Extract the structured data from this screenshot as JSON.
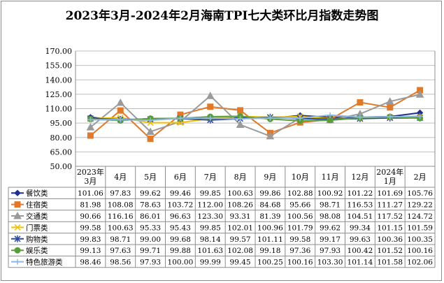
{
  "chart_data": {
    "type": "line",
    "title": "2023年3月-2024年2月海南TPI七大类环比月指数走势图",
    "categories": [
      "2023年3月",
      "4月",
      "5月",
      "6月",
      "7月",
      "8月",
      "9月",
      "10月",
      "11月",
      "12月",
      "2024年1月",
      "2月"
    ],
    "category_lines": [
      [
        "2023年",
        "3月"
      ],
      [
        "4月"
      ],
      [
        "5月"
      ],
      [
        "6月"
      ],
      [
        "7月"
      ],
      [
        "8月"
      ],
      [
        "9月"
      ],
      [
        "10月"
      ],
      [
        "11月"
      ],
      [
        "12月"
      ],
      [
        "2024年",
        "1月"
      ],
      [
        "2月"
      ]
    ],
    "ylim": [
      50,
      170
    ],
    "yticks": [
      "50.00",
      "65.00",
      "80.00",
      "95.00",
      "110.00",
      "125.00",
      "140.00",
      "155.00",
      "170.00"
    ],
    "grid": true,
    "legend": "table-bottom",
    "series": [
      {
        "name": "餐饮类",
        "color": "#1f2f8f",
        "marker": "diamond",
        "values": [
          101.06,
          97.83,
          99.62,
          99.46,
          99.85,
          100.63,
          99.86,
          102.88,
          100.92,
          101.22,
          101.69,
          105.76
        ],
        "labels": [
          "101.06",
          "97.83",
          "99.62",
          "99.46",
          "99.85",
          "100.63",
          "99.86",
          "102.88",
          "100.92",
          "101.22",
          "101.69",
          "105.76"
        ]
      },
      {
        "name": "住宿类",
        "color": "#e07a2a",
        "marker": "square",
        "values": [
          81.98,
          108.08,
          78.63,
          103.72,
          112.0,
          108.26,
          84.68,
          95.66,
          98.71,
          116.53,
          111.27,
          129.22
        ],
        "labels": [
          "81.98",
          "108.08",
          "78.63",
          "103.72",
          "112.00",
          "108.26",
          "84.68",
          "95.66",
          "98.71",
          "116.53",
          "111.27",
          "129.22"
        ]
      },
      {
        "name": "交通类",
        "color": "#9a9a9a",
        "marker": "triangle",
        "values": [
          90.66,
          116.16,
          86.01,
          96.63,
          123.3,
          93.31,
          81.39,
          100.56,
          98.08,
          104.51,
          117.52,
          124.72
        ],
        "labels": [
          "90.66",
          "116.16",
          "86.01",
          "96.63",
          "123.30",
          "93.31",
          "81.39",
          "100.56",
          "98.08",
          "104.51",
          "117.52",
          "124.72"
        ]
      },
      {
        "name": "门票类",
        "color": "#f2c100",
        "marker": "x",
        "values": [
          99.58,
          100.63,
          95.33,
          95.43,
          99.85,
          102.01,
          100.96,
          101.79,
          99.62,
          99.34,
          101.15,
          101.59
        ],
        "labels": [
          "99.58",
          "100.63",
          "95.33",
          "95.43",
          "99.85",
          "102.01",
          "100.96",
          "101.79",
          "99.62",
          "99.34",
          "101.15",
          "101.59"
        ]
      },
      {
        "name": "购物类",
        "color": "#2b4aa0",
        "marker": "star",
        "values": [
          99.83,
          98.71,
          99.0,
          99.68,
          98.14,
          99.57,
          101.11,
          99.58,
          99.17,
          99.63,
          100.36,
          100.35
        ],
        "labels": [
          "99.83",
          "98.71",
          "99.00",
          "99.68",
          "98.14",
          "99.57",
          "101.11",
          "99.58",
          "99.17",
          "99.63",
          "100.36",
          "100.35"
        ]
      },
      {
        "name": "娱乐类",
        "color": "#5a9c3c",
        "marker": "circle",
        "values": [
          99.13,
          97.63,
          99.71,
          99.88,
          101.63,
          102.08,
          99.18,
          97.36,
          97.93,
          100.42,
          101.52,
          100.16
        ],
        "labels": [
          "99.13",
          "97.63",
          "99.71",
          "99.88",
          "101.63",
          "102.08",
          "99.18",
          "97.36",
          "97.93",
          "100.42",
          "101.52",
          "100.16"
        ]
      },
      {
        "name": "特色旅游类",
        "color": "#8fb8e0",
        "marker": "plus",
        "values": [
          98.46,
          98.56,
          97.93,
          100.0,
          99.99,
          99.45,
          100.25,
          100.16,
          103.3,
          101.14,
          101.58,
          102.06
        ],
        "labels": [
          "98.46",
          "98.56",
          "97.93",
          "100.00",
          "99.99",
          "99.45",
          "100.25",
          "100.16",
          "103.30",
          "101.14",
          "101.58",
          "102.06"
        ]
      }
    ]
  }
}
